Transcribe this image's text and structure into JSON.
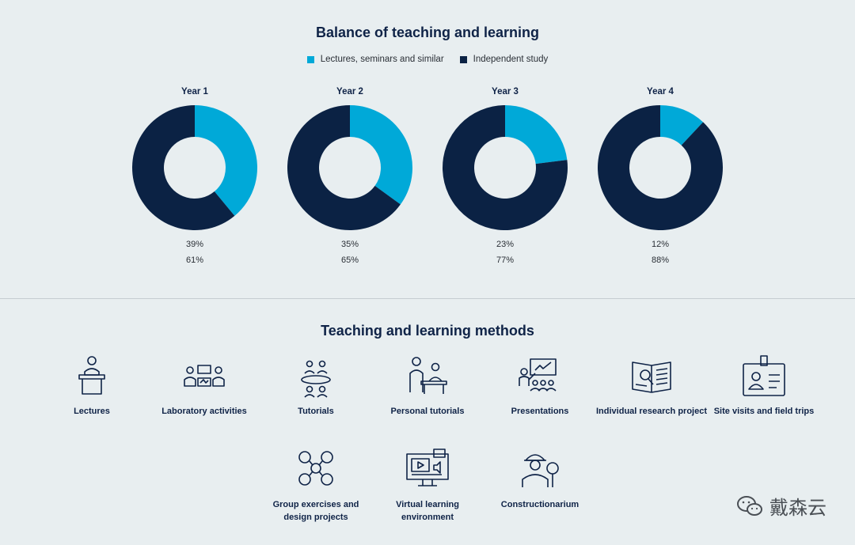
{
  "colors": {
    "primary": "#00a9d8",
    "secondary": "#0b2244"
  },
  "chart_data": {
    "type": "pie",
    "title": "Balance of teaching and learning",
    "legend": [
      "Lectures, seminars and similar",
      "Independent study"
    ],
    "legend_position": "top",
    "charts": [
      {
        "name": "Year 1",
        "values": [
          39,
          61
        ],
        "labels": [
          "39%",
          "61%"
        ]
      },
      {
        "name": "Year 2",
        "values": [
          35,
          65
        ],
        "labels": [
          "35%",
          "65%"
        ]
      },
      {
        "name": "Year 3",
        "values": [
          23,
          77
        ],
        "labels": [
          "23%",
          "77%"
        ]
      },
      {
        "name": "Year 4",
        "values": [
          12,
          88
        ],
        "labels": [
          "12%",
          "88%"
        ]
      }
    ]
  },
  "methods": {
    "title": "Teaching and learning methods",
    "items": [
      {
        "label": "Lectures",
        "icon": "lectern-icon"
      },
      {
        "label": "Laboratory activities",
        "icon": "laboratory-icon"
      },
      {
        "label": "Tutorials",
        "icon": "tutorial-group-icon"
      },
      {
        "label": "Personal tutorials",
        "icon": "personal-tutorial-icon"
      },
      {
        "label": "Presentations",
        "icon": "presentation-icon"
      },
      {
        "label": "Individual research project",
        "icon": "research-book-icon"
      },
      {
        "label": "Site visits and field trips",
        "icon": "id-badge-icon"
      },
      {
        "label": "Group exercises and design projects",
        "icon": "group-network-icon"
      },
      {
        "label": "Virtual learning environment",
        "icon": "monitor-video-icon"
      },
      {
        "label": "Constructionarium",
        "icon": "hard-hat-worker-icon"
      }
    ]
  },
  "watermark": {
    "text": "戴森云",
    "icon": "wechat-icon"
  }
}
